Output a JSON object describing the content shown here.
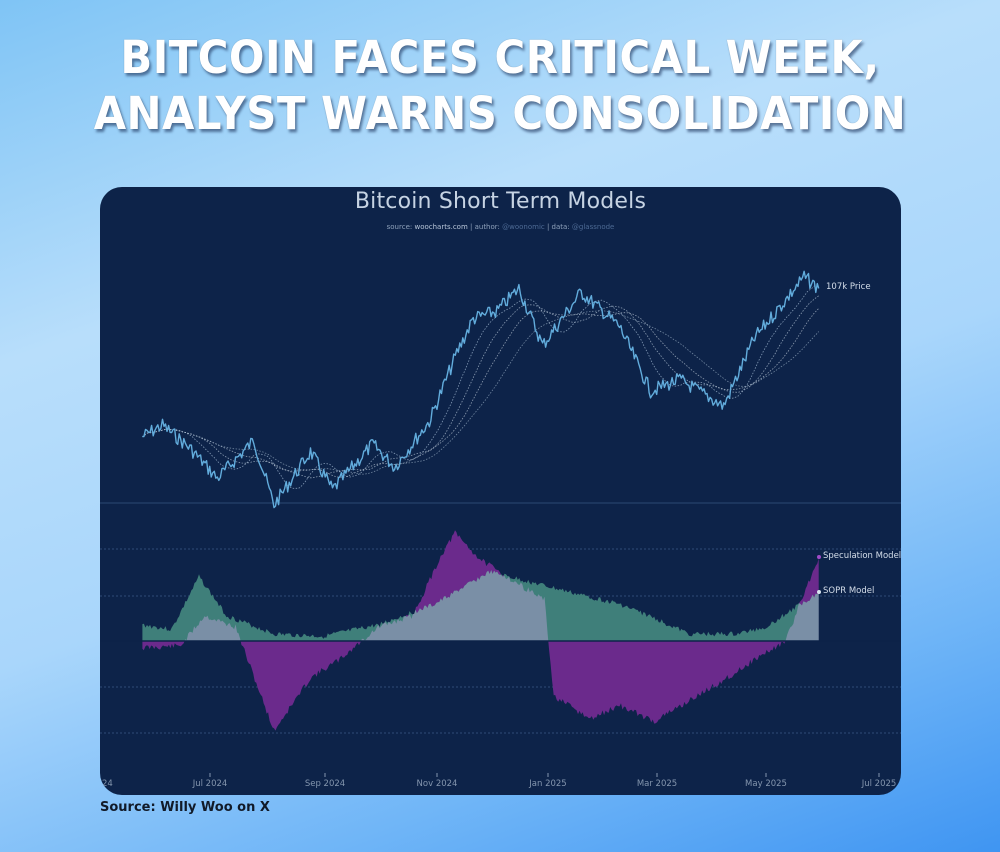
{
  "headline": {
    "line1": "BITCOIN FACES CRITICAL WEEK,",
    "line2": "ANALYST WARNS CONSOLIDATION"
  },
  "source_caption": "Source: Willy Woo on X",
  "colors": {
    "panel_bg": "#0d2349",
    "price_line": "#5fa8d8",
    "moving_averages": "#9fb1c8",
    "speculation_model": "#6b2a8c",
    "sopr_model": "#3f7f7a",
    "overlap_fill": "#7a8fa6"
  },
  "chart_data": [
    {
      "type": "line",
      "title": "Bitcoin Short Term Models",
      "subtitle": {
        "prefix": "source: ",
        "source": "woocharts.com",
        "sep1": " | author: ",
        "author": "@woonomic",
        "sep2": " | data: ",
        "data": "@glassnode"
      },
      "xlabel": "",
      "ylabel": "",
      "x_ticks": [
        "Jul 2024",
        "Sep 2024",
        "Nov 2024",
        "Jan 2025",
        "Mar 2025",
        "May 2025",
        "Jul 2025"
      ],
      "x_tick_left_partial": "24",
      "grid": false,
      "series": [
        {
          "name": "Price",
          "annotation": "107k Price",
          "approx_usd": [
            [
              "2024-05-25",
              68000
            ],
            [
              "2024-06-05",
              71000
            ],
            [
              "2024-06-20",
              65000
            ],
            [
              "2024-07-05",
              57000
            ],
            [
              "2024-07-25",
              67000
            ],
            [
              "2024-08-05",
              50000
            ],
            [
              "2024-08-25",
              64000
            ],
            [
              "2024-09-06",
              54000
            ],
            [
              "2024-09-28",
              66000
            ],
            [
              "2024-10-10",
              60000
            ],
            [
              "2024-10-29",
              72000
            ],
            [
              "2024-11-13",
              90000
            ],
            [
              "2024-11-22",
              99000
            ],
            [
              "2024-12-05",
              101000
            ],
            [
              "2024-12-17",
              107000
            ],
            [
              "2024-12-30",
              92000
            ],
            [
              "2025-01-20",
              106000
            ],
            [
              "2025-02-10",
              97000
            ],
            [
              "2025-02-27",
              80000
            ],
            [
              "2025-03-15",
              83000
            ],
            [
              "2025-04-08",
              76000
            ],
            [
              "2025-04-25",
              94000
            ],
            [
              "2025-05-12",
              104000
            ],
            [
              "2025-05-22",
              110000
            ],
            [
              "2025-05-30",
              107000
            ]
          ]
        },
        {
          "name": "Moving averages (dotted, multiple)",
          "style": "dotted"
        }
      ]
    },
    {
      "type": "area",
      "title": "",
      "x_ticks": [
        "Jul 2024",
        "Sep 2024",
        "Nov 2024",
        "Jan 2025",
        "Mar 2025",
        "May 2025",
        "Jul 2025"
      ],
      "zero_line": true,
      "series": [
        {
          "name": "Speculation Model",
          "color": "#6b2a8c",
          "relative_values": [
            [
              "2024-05-25",
              -0.15
            ],
            [
              "2024-06-15",
              -0.1
            ],
            [
              "2024-06-28",
              0.55
            ],
            [
              "2024-07-15",
              0.3
            ],
            [
              "2024-08-05",
              -1.95
            ],
            [
              "2024-08-25",
              -0.8
            ],
            [
              "2024-09-10",
              -0.4
            ],
            [
              "2024-10-01",
              0.3
            ],
            [
              "2024-10-20",
              0.55
            ],
            [
              "2024-11-05",
              1.9
            ],
            [
              "2024-11-12",
              2.35
            ],
            [
              "2024-11-25",
              1.8
            ],
            [
              "2024-12-10",
              1.4
            ],
            [
              "2024-12-31",
              0.9
            ],
            [
              "2025-01-05",
              -1.2
            ],
            [
              "2025-01-25",
              -1.7
            ],
            [
              "2025-02-10",
              -1.4
            ],
            [
              "2025-03-01",
              -1.75
            ],
            [
              "2025-03-20",
              -1.3
            ],
            [
              "2025-04-10",
              -0.8
            ],
            [
              "2025-04-25",
              -0.4
            ],
            [
              "2025-05-12",
              0.0
            ],
            [
              "2025-05-22",
              1.05
            ],
            [
              "2025-05-30",
              1.8
            ]
          ]
        },
        {
          "name": "SOPR Model",
          "color": "#3f7f7a",
          "relative_values": [
            [
              "2024-05-25",
              0.35
            ],
            [
              "2024-06-10",
              0.25
            ],
            [
              "2024-06-25",
              1.4
            ],
            [
              "2024-07-10",
              0.55
            ],
            [
              "2024-08-05",
              0.15
            ],
            [
              "2024-09-01",
              0.1
            ],
            [
              "2024-10-01",
              0.35
            ],
            [
              "2024-11-01",
              0.8
            ],
            [
              "2024-12-01",
              1.5
            ],
            [
              "2024-12-31",
              1.2
            ],
            [
              "2025-01-20",
              1.0
            ],
            [
              "2025-02-10",
              0.8
            ],
            [
              "2025-03-01",
              0.5
            ],
            [
              "2025-03-20",
              0.15
            ],
            [
              "2025-04-15",
              0.15
            ],
            [
              "2025-05-01",
              0.3
            ],
            [
              "2025-05-20",
              0.8
            ],
            [
              "2025-05-30",
              1.05
            ]
          ]
        }
      ]
    }
  ],
  "legend": {
    "price": "107k Price",
    "speculation": "Speculation Model",
    "sopr": "SOPR Model"
  }
}
